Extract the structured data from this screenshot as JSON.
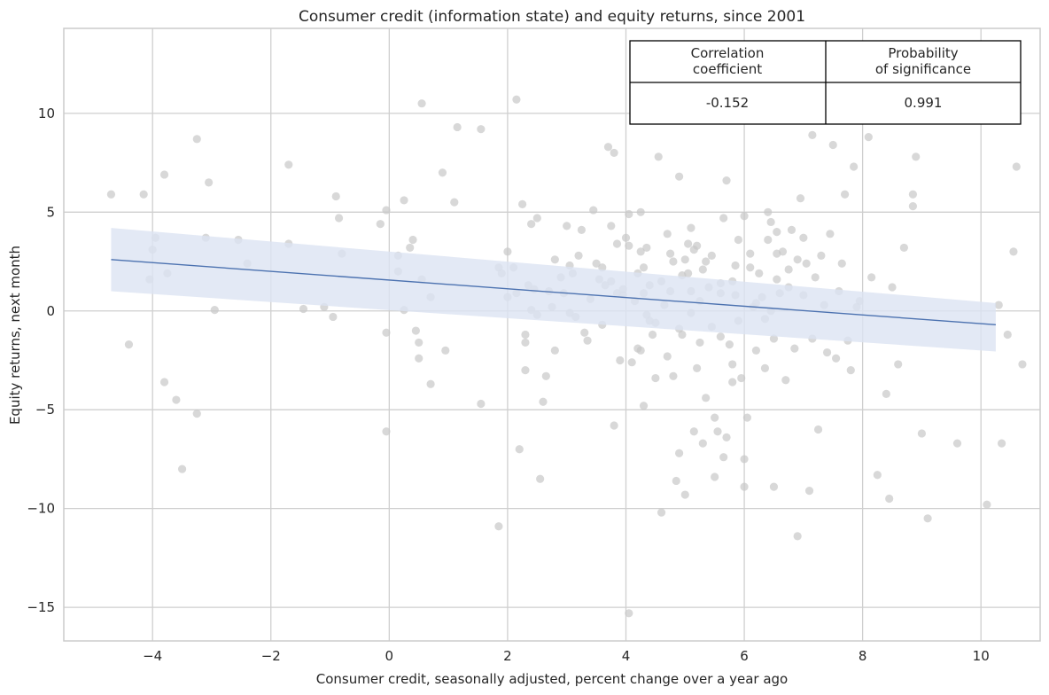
{
  "chart_data": {
    "type": "scatter",
    "title": "Consumer credit (information state) and equity returns, since 2001",
    "xlabel": "Consumer credit, seasonally adjusted, percent change over a year ago",
    "ylabel": "Equity returns, next month",
    "xlim": [
      -5.5,
      11.0
    ],
    "ylim": [
      -16.7,
      14.3
    ],
    "xticks": [
      -4,
      -2,
      0,
      2,
      4,
      6,
      8,
      10
    ],
    "yticks": [
      -15,
      -10,
      -5,
      0,
      5,
      10
    ],
    "xtick_labels": [
      "−4",
      "−2",
      "0",
      "2",
      "4",
      "6",
      "8",
      "10"
    ],
    "ytick_labels": [
      "−15",
      "−10",
      "−5",
      "0",
      "5",
      "10"
    ],
    "grid": true,
    "colors": {
      "points": "#c8c8c8",
      "line": "#4c72b0",
      "band": "#dce4f2",
      "grid": "#cfcfcf",
      "frame": "#cccccc"
    },
    "regression": {
      "x": [
        -4.7,
        10.25
      ],
      "y": [
        2.6,
        -0.7
      ],
      "ci_upper": [
        4.2,
        0.4
      ],
      "ci_lower": [
        1.0,
        -2.05
      ]
    },
    "table": {
      "headers": [
        [
          "Correlation",
          "coefficient"
        ],
        [
          "Probability",
          "of significance"
        ]
      ],
      "values": [
        "-0.152",
        "0.991"
      ],
      "placement": "top-right"
    },
    "points": [
      [
        -4.7,
        5.9
      ],
      [
        -4.15,
        5.9
      ],
      [
        -4.4,
        -1.7
      ],
      [
        -4.0,
        3.1
      ],
      [
        -3.95,
        3.7
      ],
      [
        -4.05,
        1.6
      ],
      [
        -3.8,
        6.9
      ],
      [
        -3.75,
        1.9
      ],
      [
        -3.8,
        -3.6
      ],
      [
        -3.6,
        -4.5
      ],
      [
        -3.5,
        -8.0
      ],
      [
        -3.25,
        8.7
      ],
      [
        -3.25,
        -5.2
      ],
      [
        -3.1,
        3.7
      ],
      [
        -3.05,
        6.5
      ],
      [
        -2.95,
        0.05
      ],
      [
        -2.55,
        3.6
      ],
      [
        -2.4,
        2.4
      ],
      [
        -1.7,
        7.4
      ],
      [
        -1.7,
        3.4
      ],
      [
        -1.45,
        0.1
      ],
      [
        -1.1,
        0.2
      ],
      [
        -0.95,
        -0.3
      ],
      [
        -0.9,
        5.8
      ],
      [
        -0.85,
        4.7
      ],
      [
        -0.8,
        2.9
      ],
      [
        -0.15,
        4.4
      ],
      [
        -0.05,
        5.1
      ],
      [
        -0.05,
        -1.1
      ],
      [
        -0.05,
        -6.1
      ],
      [
        0.15,
        2.8
      ],
      [
        0.15,
        2.0
      ],
      [
        0.25,
        5.6
      ],
      [
        0.25,
        0.05
      ],
      [
        0.35,
        3.2
      ],
      [
        0.4,
        3.6
      ],
      [
        0.45,
        -1.0
      ],
      [
        0.5,
        -1.6
      ],
      [
        0.5,
        -2.4
      ],
      [
        0.55,
        10.5
      ],
      [
        0.55,
        1.6
      ],
      [
        0.7,
        0.7
      ],
      [
        0.7,
        -3.7
      ],
      [
        0.9,
        7.0
      ],
      [
        0.95,
        -2.0
      ],
      [
        1.1,
        5.5
      ],
      [
        1.15,
        9.3
      ],
      [
        1.55,
        9.2
      ],
      [
        1.55,
        -4.7
      ],
      [
        1.85,
        -10.9
      ],
      [
        1.85,
        2.2
      ],
      [
        1.9,
        1.9
      ],
      [
        2.0,
        3.0
      ],
      [
        2.0,
        0.7
      ],
      [
        2.1,
        2.2
      ],
      [
        2.15,
        10.7
      ],
      [
        2.2,
        -7.0
      ],
      [
        2.25,
        5.4
      ],
      [
        2.3,
        -1.2
      ],
      [
        2.3,
        -1.6
      ],
      [
        2.3,
        -3.0
      ],
      [
        2.35,
        1.3
      ],
      [
        2.4,
        4.4
      ],
      [
        2.4,
        0.05
      ],
      [
        2.45,
        1.1
      ],
      [
        2.5,
        4.7
      ],
      [
        2.5,
        -0.2
      ],
      [
        2.55,
        -8.5
      ],
      [
        2.6,
        -4.6
      ],
      [
        2.65,
        -3.3
      ],
      [
        2.7,
        1.0
      ],
      [
        2.75,
        0.2
      ],
      [
        2.8,
        -2.0
      ],
      [
        2.9,
        1.7
      ],
      [
        2.95,
        0.9
      ],
      [
        3.0,
        4.3
      ],
      [
        3.05,
        2.3
      ],
      [
        3.05,
        -0.1
      ],
      [
        3.1,
        1.9
      ],
      [
        3.15,
        -0.3
      ],
      [
        3.25,
        4.1
      ],
      [
        3.3,
        -1.1
      ],
      [
        3.35,
        -1.5
      ],
      [
        3.45,
        5.1
      ],
      [
        3.5,
        2.4
      ],
      [
        3.55,
        1.6
      ],
      [
        3.6,
        2.2
      ],
      [
        3.65,
        1.3
      ],
      [
        3.7,
        8.3
      ],
      [
        3.75,
        4.3
      ],
      [
        3.75,
        1.5
      ],
      [
        3.8,
        8.0
      ],
      [
        3.8,
        -5.8
      ],
      [
        3.85,
        3.4
      ],
      [
        3.85,
        0.9
      ],
      [
        3.9,
        -2.5
      ],
      [
        3.95,
        1.1
      ],
      [
        3.95,
        0.8
      ],
      [
        4.0,
        3.7
      ],
      [
        4.05,
        4.9
      ],
      [
        4.05,
        3.3
      ],
      [
        4.1,
        -2.6
      ],
      [
        4.15,
        0.5
      ],
      [
        4.2,
        -1.9
      ],
      [
        4.25,
        5.0
      ],
      [
        4.25,
        3.0
      ],
      [
        4.25,
        -2.0
      ],
      [
        4.3,
        -4.8
      ],
      [
        4.3,
        0.9
      ],
      [
        4.35,
        3.2
      ],
      [
        4.35,
        -0.2
      ],
      [
        4.4,
        1.3
      ],
      [
        4.45,
        -1.2
      ],
      [
        4.5,
        -3.4
      ],
      [
        4.5,
        -0.6
      ],
      [
        4.55,
        7.8
      ],
      [
        4.6,
        -10.2
      ],
      [
        4.65,
        0.3
      ],
      [
        4.7,
        -2.3
      ],
      [
        4.7,
        3.9
      ],
      [
        4.75,
        1.0
      ],
      [
        4.8,
        2.5
      ],
      [
        4.8,
        -3.3
      ],
      [
        4.85,
        -8.6
      ],
      [
        4.9,
        -7.2
      ],
      [
        4.9,
        6.8
      ],
      [
        4.95,
        1.8
      ],
      [
        4.95,
        -1.2
      ],
      [
        5.0,
        -9.3
      ],
      [
        5.05,
        3.4
      ],
      [
        5.05,
        1.9
      ],
      [
        5.1,
        1.0
      ],
      [
        5.1,
        4.2
      ],
      [
        5.15,
        -6.1
      ],
      [
        5.2,
        3.3
      ],
      [
        5.25,
        -1.6
      ],
      [
        5.25,
        0.5
      ],
      [
        5.3,
        -6.7
      ],
      [
        5.3,
        2.1
      ],
      [
        5.35,
        -4.4
      ],
      [
        5.4,
        1.2
      ],
      [
        5.45,
        2.8
      ],
      [
        5.5,
        -8.4
      ],
      [
        5.5,
        -5.4
      ],
      [
        5.55,
        -6.1
      ],
      [
        5.6,
        1.4
      ],
      [
        5.6,
        -1.3
      ],
      [
        5.65,
        -7.4
      ],
      [
        5.7,
        6.6
      ],
      [
        5.7,
        -6.4
      ],
      [
        5.75,
        -1.7
      ],
      [
        5.8,
        -2.7
      ],
      [
        5.8,
        -3.6
      ],
      [
        5.85,
        0.8
      ],
      [
        5.9,
        3.6
      ],
      [
        5.95,
        -3.4
      ],
      [
        6.0,
        -7.5
      ],
      [
        6.05,
        -5.4
      ],
      [
        6.1,
        2.2
      ],
      [
        6.15,
        0.2
      ],
      [
        6.2,
        -2.0
      ],
      [
        6.25,
        1.9
      ],
      [
        6.3,
        0.7
      ],
      [
        6.35,
        -2.9
      ],
      [
        6.4,
        3.6
      ],
      [
        6.4,
        5.0
      ],
      [
        6.45,
        4.5
      ],
      [
        6.5,
        -1.4
      ],
      [
        6.5,
        -8.9
      ],
      [
        6.55,
        1.6
      ],
      [
        6.6,
        0.9
      ],
      [
        6.65,
        3.0
      ],
      [
        6.7,
        -3.5
      ],
      [
        6.75,
        1.2
      ],
      [
        6.8,
        4.1
      ],
      [
        6.85,
        -1.9
      ],
      [
        6.9,
        -11.4
      ],
      [
        6.95,
        5.7
      ],
      [
        7.0,
        3.7
      ],
      [
        7.05,
        2.4
      ],
      [
        7.1,
        -9.1
      ],
      [
        7.15,
        8.9
      ],
      [
        7.2,
        1.7
      ],
      [
        7.25,
        -6.0
      ],
      [
        7.3,
        2.8
      ],
      [
        7.35,
        0.3
      ],
      [
        7.4,
        -2.1
      ],
      [
        7.45,
        3.9
      ],
      [
        7.5,
        8.4
      ],
      [
        7.55,
        -2.4
      ],
      [
        7.6,
        1.0
      ],
      [
        7.65,
        2.4
      ],
      [
        7.7,
        5.9
      ],
      [
        7.75,
        -1.5
      ],
      [
        7.8,
        -3.0
      ],
      [
        7.85,
        7.3
      ],
      [
        7.9,
        0.2
      ],
      [
        7.95,
        0.5
      ],
      [
        8.1,
        8.8
      ],
      [
        8.15,
        1.7
      ],
      [
        8.25,
        -8.3
      ],
      [
        8.4,
        -4.2
      ],
      [
        8.45,
        -9.5
      ],
      [
        8.5,
        1.2
      ],
      [
        8.6,
        -2.7
      ],
      [
        8.7,
        3.2
      ],
      [
        8.85,
        5.9
      ],
      [
        8.85,
        5.3
      ],
      [
        8.9,
        7.8
      ],
      [
        9.0,
        -6.2
      ],
      [
        9.1,
        -10.5
      ],
      [
        9.6,
        -6.7
      ],
      [
        10.1,
        -9.8
      ],
      [
        10.3,
        0.3
      ],
      [
        10.35,
        -6.7
      ],
      [
        10.45,
        -1.2
      ],
      [
        10.55,
        3.0
      ],
      [
        10.6,
        7.3
      ],
      [
        10.7,
        -2.7
      ],
      [
        6.0,
        -8.9
      ],
      [
        5.1,
        -0.1
      ],
      [
        4.75,
        2.9
      ],
      [
        6.55,
        2.9
      ],
      [
        5.6,
        0.9
      ],
      [
        5.9,
        -0.5
      ],
      [
        6.2,
        0.4
      ],
      [
        4.3,
        2.2
      ],
      [
        3.4,
        0.6
      ],
      [
        3.2,
        2.8
      ],
      [
        5.0,
        2.6
      ],
      [
        4.6,
        1.5
      ],
      [
        6.0,
        4.8
      ],
      [
        5.35,
        2.5
      ],
      [
        6.75,
        2.1
      ],
      [
        7.0,
        0.8
      ],
      [
        4.9,
        -0.9
      ],
      [
        5.45,
        -0.8
      ],
      [
        6.35,
        -0.4
      ],
      [
        5.15,
        3.1
      ],
      [
        4.4,
        -0.5
      ],
      [
        3.6,
        -0.7
      ],
      [
        2.15,
        0.9
      ],
      [
        2.8,
        2.6
      ],
      [
        6.9,
        2.6
      ],
      [
        5.8,
        1.5
      ],
      [
        4.05,
        -15.3
      ],
      [
        5.65,
        4.7
      ],
      [
        7.15,
        -1.4
      ],
      [
        6.55,
        4.0
      ],
      [
        5.2,
        -2.9
      ],
      [
        6.1,
        2.9
      ],
      [
        6.45,
        0.0
      ],
      [
        5.85,
        2.3
      ],
      [
        4.2,
        1.9
      ]
    ]
  }
}
